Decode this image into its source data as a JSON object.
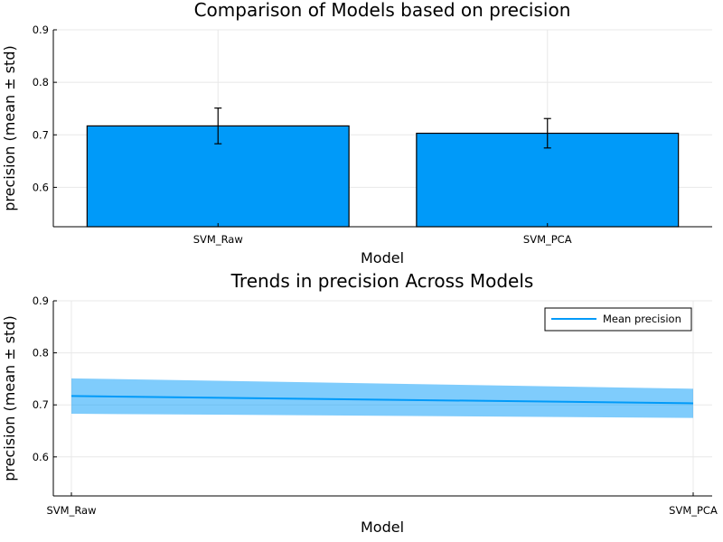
{
  "chart_data": [
    {
      "type": "bar",
      "title": "Comparison of Models based on precision",
      "xlabel": "Model",
      "ylabel": "precision (mean ± std)",
      "categories": [
        "SVM_Raw",
        "SVM_PCA"
      ],
      "values": [
        0.717,
        0.703
      ],
      "errors": [
        0.034,
        0.028
      ],
      "ylim": [
        0.525,
        0.9
      ],
      "yticks": [
        0.6,
        0.7,
        0.8,
        0.9
      ],
      "ytick_labels": [
        "0.6",
        "0.7",
        "0.8",
        "0.9"
      ],
      "grid": true,
      "color": "#009af9"
    },
    {
      "type": "line",
      "title": "Trends in precision Across Models",
      "xlabel": "Model",
      "ylabel": "precision (mean ± std)",
      "categories": [
        "SVM_Raw",
        "SVM_PCA"
      ],
      "series": [
        {
          "name": "Mean precision",
          "values": [
            0.717,
            0.703
          ],
          "lower": [
            0.683,
            0.675
          ],
          "upper": [
            0.751,
            0.731
          ]
        }
      ],
      "ylim": [
        0.525,
        0.9
      ],
      "yticks": [
        0.6,
        0.7,
        0.8,
        0.9
      ],
      "ytick_labels": [
        "0.6",
        "0.7",
        "0.8",
        "0.9"
      ],
      "legend": "top-right",
      "grid": true,
      "color": "#009af9"
    }
  ]
}
